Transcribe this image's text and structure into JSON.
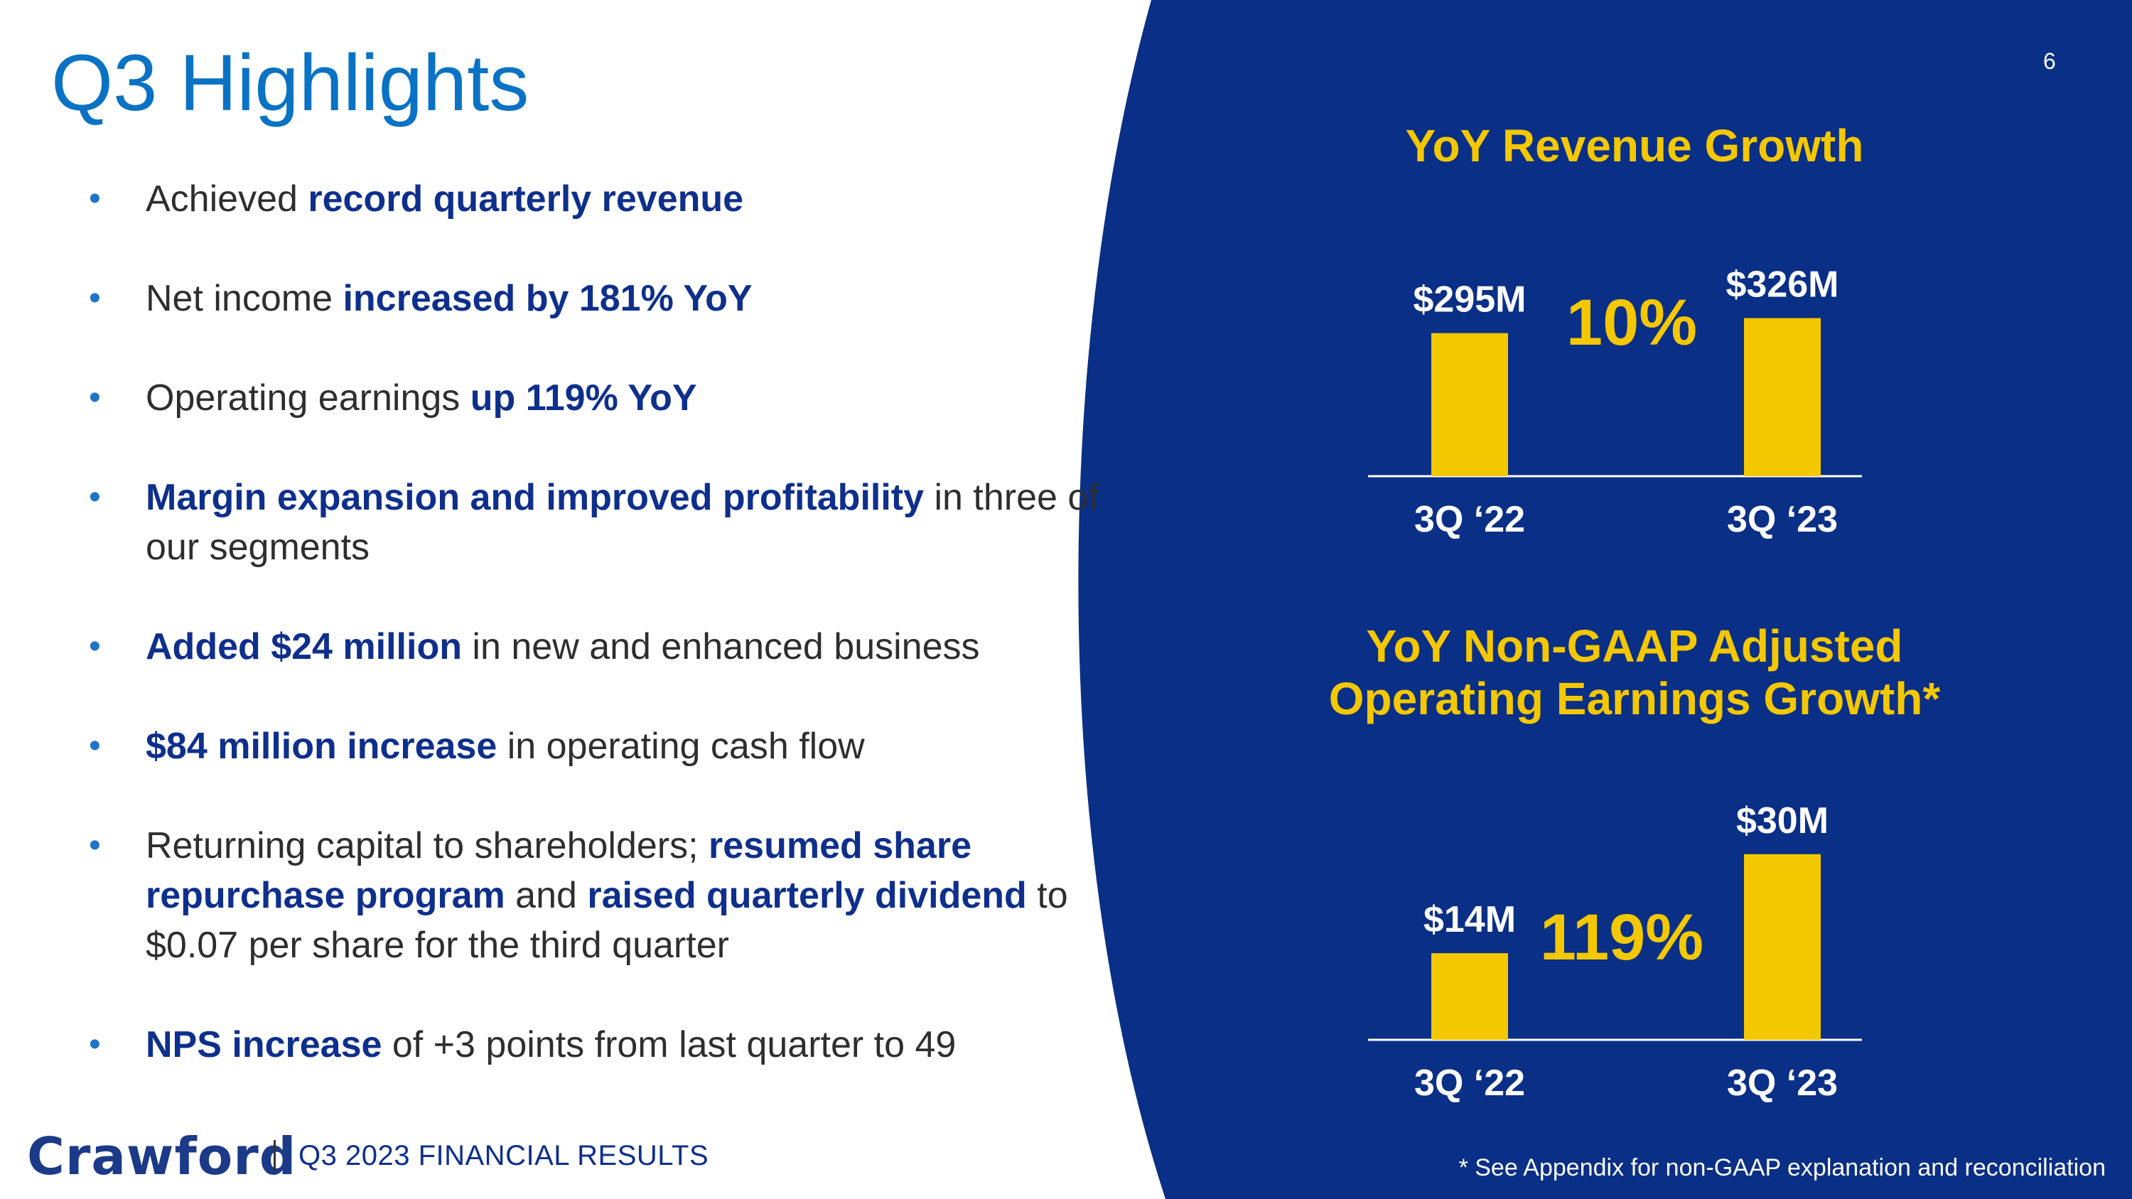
{
  "page": {
    "title": "Q3 Highlights",
    "page_number": "6"
  },
  "colors": {
    "panel_blue": "#0a2f86",
    "accent_yellow": "#f4c800",
    "title_blue": "#0a72c4",
    "emphasis_blue": "#0e2f8c"
  },
  "bullets": [
    {
      "parts": [
        {
          "t": "Achieved ",
          "b": false
        },
        {
          "t": "record quarterly revenue",
          "b": true
        }
      ]
    },
    {
      "parts": [
        {
          "t": "Net income ",
          "b": false
        },
        {
          "t": "increased by 181% YoY",
          "b": true
        }
      ]
    },
    {
      "parts": [
        {
          "t": "Operating earnings ",
          "b": false
        },
        {
          "t": "up 119% YoY",
          "b": true
        }
      ]
    },
    {
      "parts": [
        {
          "t": "Margin expansion and improved profitability",
          "b": true
        },
        {
          "t": " in three of our segments",
          "b": false
        }
      ]
    },
    {
      "parts": [
        {
          "t": "Added $24 million",
          "b": true
        },
        {
          "t": " in new and enhanced business",
          "b": false
        }
      ]
    },
    {
      "parts": [
        {
          "t": "$84 million increase",
          "b": true
        },
        {
          "t": " in operating cash flow",
          "b": false
        }
      ]
    },
    {
      "parts": [
        {
          "t": "Returning capital to shareholders; ",
          "b": false
        },
        {
          "t": "resumed share repurchase program",
          "b": true
        },
        {
          "t": " and ",
          "b": false
        },
        {
          "t": "raised quarterly dividend",
          "b": true
        },
        {
          "t": " to $0.07 per share for the third quarter",
          "b": false
        }
      ]
    },
    {
      "parts": [
        {
          "t": "NPS increase",
          "b": true
        },
        {
          "t": " of +3 points from last quarter to 49",
          "b": false
        }
      ]
    }
  ],
  "footer": {
    "logo": "Crawford",
    "text": "Q3 2023 FINANCIAL RESULTS",
    "footnote": "* See Appendix for non-GAAP explanation and reconciliation"
  },
  "chart_data": [
    {
      "type": "bar",
      "title": "YoY Revenue Growth",
      "categories": [
        "3Q ‘22",
        "3Q ‘23"
      ],
      "values": [
        295,
        326
      ],
      "value_labels": [
        "$295M",
        "$326M"
      ],
      "unit": "$M",
      "growth_label": "10%",
      "ylim": [
        0,
        340
      ]
    },
    {
      "type": "bar",
      "title_lines": [
        "YoY Non-GAAP Adjusted",
        "Operating Earnings Growth*"
      ],
      "categories": [
        "3Q ‘22",
        "3Q ‘23"
      ],
      "values": [
        14,
        30
      ],
      "value_labels": [
        "$14M",
        "$30M"
      ],
      "unit": "$M",
      "growth_label": "119%",
      "ylim": [
        0,
        34
      ]
    }
  ]
}
